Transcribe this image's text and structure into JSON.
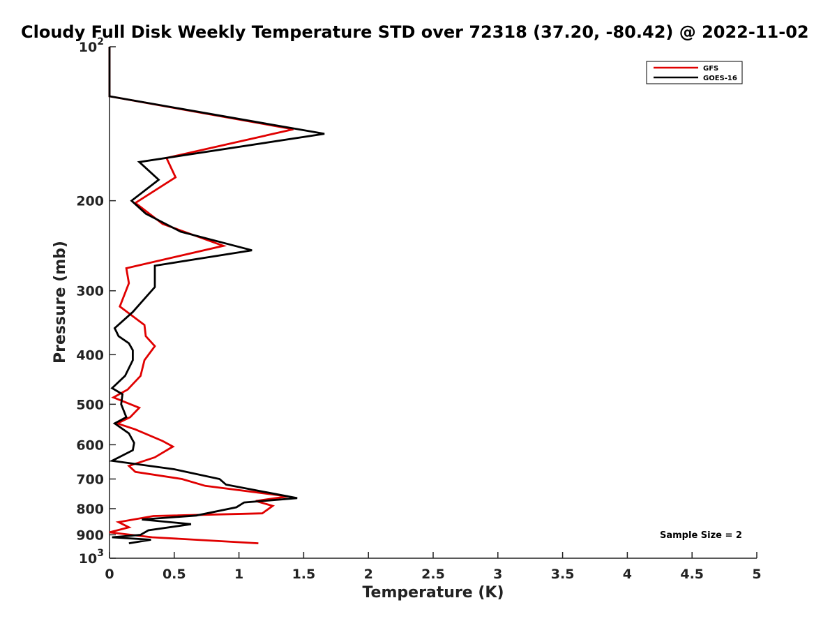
{
  "chart_data": {
    "type": "line",
    "title": "Cloudy Full Disk Weekly Temperature STD over 72318 (37.20, -80.42) @ 2022-11-02",
    "xlabel": "Temperature (K)",
    "ylabel": "Pressure (mb)",
    "xlim": [
      0,
      5
    ],
    "ylim": [
      100,
      1000
    ],
    "yscale": "log",
    "y_reversed": true,
    "xticks": [
      0,
      0.5,
      1,
      1.5,
      2,
      2.5,
      3,
      3.5,
      4,
      4.5,
      5
    ],
    "xtick_labels": [
      "0",
      "0.5",
      "1",
      "1.5",
      "2",
      "2.5",
      "3",
      "3.5",
      "4",
      "4.5",
      "5"
    ],
    "yticks": [
      100,
      200,
      300,
      400,
      500,
      600,
      700,
      800,
      900,
      1000
    ],
    "ytick_labels": [
      {
        "base": "10",
        "exp": "2"
      },
      {
        "base": "200",
        "exp": ""
      },
      {
        "base": "300",
        "exp": ""
      },
      {
        "base": "400",
        "exp": ""
      },
      {
        "base": "500",
        "exp": ""
      },
      {
        "base": "600",
        "exp": ""
      },
      {
        "base": "700",
        "exp": ""
      },
      {
        "base": "800",
        "exp": ""
      },
      {
        "base": "900",
        "exp": ""
      },
      {
        "base": "10",
        "exp": "3"
      }
    ],
    "grid": false,
    "legend_position": "top-right",
    "annotation": "Sample Size = 2",
    "series": [
      {
        "name": "GFS",
        "color": "#e00000",
        "points": [
          [
            0,
            100
          ],
          [
            0,
            125
          ],
          [
            1.42,
            145
          ],
          [
            0.44,
            165
          ],
          [
            0.51,
            180
          ],
          [
            0.2,
            202
          ],
          [
            0.41,
            222
          ],
          [
            0.88,
            245
          ],
          [
            0.13,
            271
          ],
          [
            0.15,
            290
          ],
          [
            0.08,
            322
          ],
          [
            0.27,
            350
          ],
          [
            0.28,
            368
          ],
          [
            0.35,
            385
          ],
          [
            0.27,
            410
          ],
          [
            0.24,
            440
          ],
          [
            0.14,
            468
          ],
          [
            0.03,
            485
          ],
          [
            0.23,
            508
          ],
          [
            0.16,
            530
          ],
          [
            0.06,
            545
          ],
          [
            0.2,
            560
          ],
          [
            0.41,
            590
          ],
          [
            0.49,
            605
          ],
          [
            0.35,
            635
          ],
          [
            0.15,
            660
          ],
          [
            0.2,
            678
          ],
          [
            0.56,
            700
          ],
          [
            0.74,
            722
          ],
          [
            1.38,
            757
          ],
          [
            1.13,
            773
          ],
          [
            1.26,
            790
          ],
          [
            1.18,
            817
          ],
          [
            0.34,
            827
          ],
          [
            0.07,
            850
          ],
          [
            0.15,
            870
          ],
          [
            0,
            890
          ],
          [
            0.33,
            910
          ],
          [
            1.15,
            935
          ]
        ]
      },
      {
        "name": "GOES-16",
        "color": "#000000",
        "points": [
          [
            0,
            100
          ],
          [
            0,
            125
          ],
          [
            1.66,
            148
          ],
          [
            0.23,
            168
          ],
          [
            0.38,
            182
          ],
          [
            0.17,
            200
          ],
          [
            0.28,
            212
          ],
          [
            0.55,
            230
          ],
          [
            1.1,
            250
          ],
          [
            0.35,
            268
          ],
          [
            0.35,
            295
          ],
          [
            0.18,
            330
          ],
          [
            0.04,
            355
          ],
          [
            0.07,
            368
          ],
          [
            0.15,
            380
          ],
          [
            0.18,
            392
          ],
          [
            0.18,
            410
          ],
          [
            0.12,
            440
          ],
          [
            0.02,
            465
          ],
          [
            0.1,
            478
          ],
          [
            0.09,
            500
          ],
          [
            0.13,
            530
          ],
          [
            0.04,
            545
          ],
          [
            0.15,
            570
          ],
          [
            0.19,
            595
          ],
          [
            0.18,
            615
          ],
          [
            0.02,
            645
          ],
          [
            0.5,
            670
          ],
          [
            0.85,
            700
          ],
          [
            0.9,
            718
          ],
          [
            1.45,
            763
          ],
          [
            1.04,
            778
          ],
          [
            0.98,
            795
          ],
          [
            0.67,
            825
          ],
          [
            0.25,
            840
          ],
          [
            0.63,
            858
          ],
          [
            0.3,
            882
          ],
          [
            0.24,
            900
          ],
          [
            0.02,
            910
          ],
          [
            0.32,
            920
          ],
          [
            0.15,
            935
          ]
        ]
      }
    ]
  }
}
